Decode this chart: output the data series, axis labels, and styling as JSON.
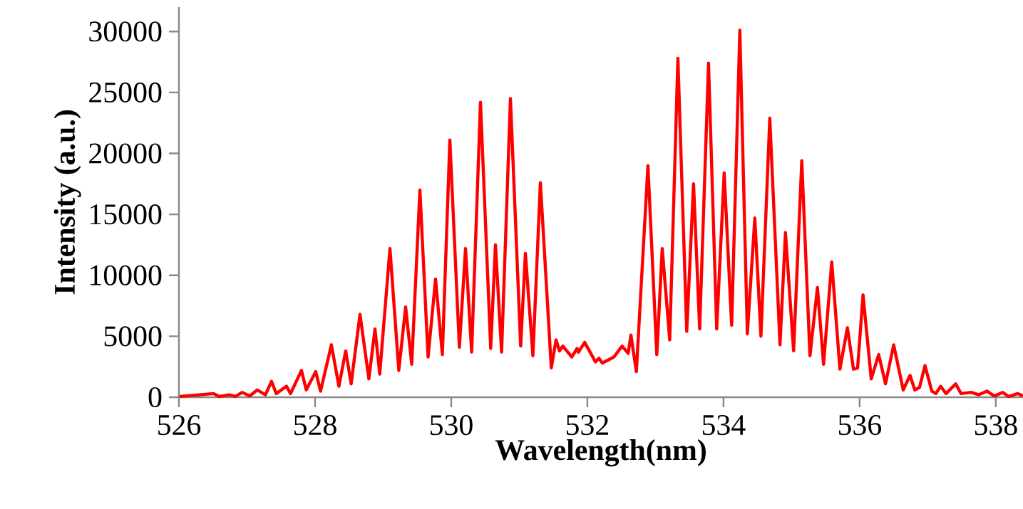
{
  "chart_data": {
    "type": "line",
    "xlabel": "Wavelength(nm)",
    "ylabel": "Intensity (a.u.)",
    "xlim": [
      526,
      538.4
    ],
    "ylim": [
      0,
      32000
    ],
    "xticks": [
      526,
      528,
      530,
      532,
      534,
      536,
      538
    ],
    "yticks": [
      0,
      5000,
      10000,
      15000,
      20000,
      25000,
      30000
    ],
    "grid": false,
    "legend": false,
    "marker": "none",
    "line_style": "solid",
    "series": [
      {
        "color": "#ff0000",
        "x": [
          526.01,
          526.51,
          526.59,
          526.74,
          526.83,
          526.93,
          527.04,
          527.15,
          527.27,
          527.36,
          527.43,
          527.58,
          527.64,
          527.8,
          527.87,
          528.01,
          528.08,
          528.24,
          528.35,
          528.45,
          528.53,
          528.66,
          528.79,
          528.88,
          528.95,
          529.1,
          529.23,
          529.33,
          529.42,
          529.54,
          529.66,
          529.77,
          529.87,
          529.98,
          530.12,
          530.21,
          530.3,
          530.43,
          530.58,
          530.65,
          530.74,
          530.87,
          531.02,
          531.09,
          531.2,
          531.31,
          531.47,
          531.54,
          531.59,
          531.64,
          531.77,
          531.85,
          531.87,
          531.96,
          532.12,
          532.17,
          532.22,
          532.39,
          532.51,
          532.6,
          532.64,
          532.72,
          532.89,
          533.02,
          533.1,
          533.21,
          533.33,
          533.46,
          533.56,
          533.65,
          533.78,
          533.9,
          534.01,
          534.12,
          534.24,
          534.35,
          534.46,
          534.55,
          534.68,
          534.83,
          534.91,
          535.03,
          535.15,
          535.27,
          535.38,
          535.47,
          535.59,
          535.71,
          535.82,
          535.91,
          535.97,
          536.05,
          536.17,
          536.28,
          536.38,
          536.5,
          536.64,
          536.74,
          536.81,
          536.88,
          536.96,
          537.06,
          537.12,
          537.19,
          537.27,
          537.41,
          537.49,
          537.64,
          537.75,
          537.87,
          537.98,
          538.1,
          538.19,
          538.32,
          538.4
        ],
        "values": [
          60,
          300,
          60,
          200,
          60,
          400,
          100,
          600,
          200,
          1300,
          300,
          900,
          300,
          2200,
          600,
          2100,
          500,
          4300,
          900,
          3800,
          1100,
          6800,
          1500,
          5600,
          1900,
          12200,
          2200,
          7400,
          2700,
          17000,
          3300,
          9700,
          3500,
          21100,
          4100,
          12200,
          3700,
          24200,
          4000,
          12500,
          3700,
          24500,
          4200,
          11800,
          3400,
          17600,
          2400,
          4700,
          3800,
          4200,
          3300,
          4000,
          3700,
          4500,
          2900,
          3200,
          2800,
          3300,
          4200,
          3600,
          5100,
          2100,
          19000,
          3500,
          12200,
          4700,
          27800,
          5400,
          17500,
          5600,
          27400,
          5600,
          18400,
          5900,
          30100,
          5200,
          14700,
          5000,
          22900,
          4300,
          13500,
          3800,
          19400,
          3400,
          9000,
          2700,
          11100,
          2300,
          5700,
          2300,
          2400,
          8400,
          1500,
          3500,
          1100,
          4300,
          600,
          1800,
          600,
          800,
          2600,
          500,
          300,
          900,
          300,
          1100,
          300,
          400,
          200,
          500,
          100,
          400,
          60,
          300,
          100
        ]
      }
    ]
  }
}
